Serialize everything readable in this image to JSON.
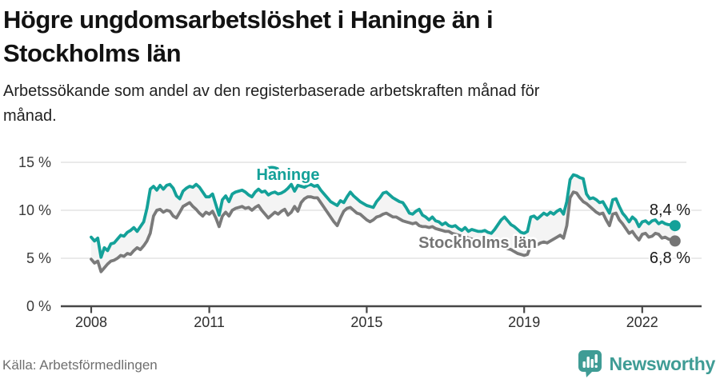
{
  "header": {
    "title": "Högre ungdomsarbetslöshet i Haninge än i Stockholms län",
    "title_lines": [
      "Högre ungdomsarbetslöshet i Haninge än i",
      "Stockholms län"
    ],
    "subtitle": "Arbetssökande som andel av den registerbaserade arbetskraften månad för månad.",
    "subtitle_lines": [
      "Arbetssökande som andel av den registerbaserade arbetskraften månad för",
      "månad."
    ]
  },
  "footer": {
    "source": "Källa: Arbetsförmedlingen",
    "brand": "Newsworthy"
  },
  "colors": {
    "haninge": "#14a199",
    "stockholm": "#7a7a7a",
    "fill_between": "#f4f4f4",
    "gridline": "#e3e3e3",
    "axis": "#474747",
    "brand_teal": "#3f9c95"
  },
  "chart_data": {
    "type": "line",
    "title": "Högre ungdomsarbetslöshet i Haninge än i Stockholms län",
    "subtitle": "Arbetssökande som andel av den registerbaserade arbetskraften månad för månad.",
    "unit": "%",
    "frequency": "monthly",
    "x_start": "2008-01",
    "x_end": "2022-11",
    "grid": "horizontal",
    "legend": "inline-labels",
    "ylim": [
      0,
      16.5
    ],
    "y_ticks": [
      {
        "value": 0,
        "label": "0 %"
      },
      {
        "value": 5,
        "label": "5 %"
      },
      {
        "value": 10,
        "label": "10 %"
      },
      {
        "value": 15,
        "label": "15 %"
      }
    ],
    "x_ticks": [
      {
        "year": 2008,
        "label": "2008"
      },
      {
        "year": 2011,
        "label": "2011"
      },
      {
        "year": 2015,
        "label": "2015"
      },
      {
        "year": 2019,
        "label": "2019"
      },
      {
        "year": 2022,
        "label": "2022"
      }
    ],
    "series": [
      {
        "name": "Haninge",
        "color": "#14a199",
        "end_label": "8,4 %",
        "end_value": 8.4,
        "values": [
          7.2,
          6.8,
          7.1,
          5.1,
          6.1,
          5.8,
          6.5,
          6.6,
          7.0,
          7.4,
          7.3,
          7.7,
          7.9,
          8.2,
          7.8,
          8.3,
          8.8,
          10.2,
          12.2,
          12.5,
          12.1,
          12.6,
          12.2,
          12.6,
          12.7,
          12.3,
          11.5,
          11.2,
          12.0,
          12.3,
          12.5,
          12.4,
          12.7,
          12.4,
          11.9,
          11.4,
          11.4,
          11.7,
          10.6,
          9.5,
          11.1,
          11.5,
          10.9,
          11.7,
          11.9,
          12.0,
          12.1,
          11.9,
          11.6,
          11.4,
          11.9,
          12.2,
          11.9,
          12.0,
          11.6,
          11.8,
          11.9,
          11.7,
          11.8,
          12.0,
          12.3,
          12.7,
          12.0,
          12.6,
          12.5,
          12.4,
          12.6,
          12.7,
          12.5,
          12.6,
          12.1,
          11.7,
          11.3,
          10.9,
          10.7,
          10.5,
          11.0,
          10.8,
          11.4,
          11.9,
          11.5,
          11.2,
          10.9,
          10.7,
          10.5,
          10.4,
          10.3,
          10.9,
          11.3,
          11.8,
          11.9,
          11.6,
          11.3,
          11.1,
          10.9,
          10.8,
          10.3,
          9.7,
          9.6,
          9.9,
          10.1,
          9.5,
          9.3,
          9.0,
          9.3,
          8.9,
          8.8,
          8.5,
          8.7,
          8.4,
          8.3,
          8.4,
          8.1,
          7.9,
          8.2,
          7.8,
          8.0,
          7.9,
          7.8,
          7.8,
          7.9,
          7.7,
          7.6,
          8.0,
          8.5,
          9.0,
          9.3,
          8.9,
          8.5,
          8.3,
          8.0,
          7.7,
          7.6,
          7.8,
          9.3,
          9.4,
          9.1,
          9.4,
          9.7,
          9.5,
          9.8,
          9.6,
          9.9,
          10.1,
          9.6,
          10.9,
          13.2,
          13.7,
          13.6,
          13.4,
          13.3,
          11.7,
          11.2,
          11.3,
          11.1,
          10.8,
          10.9,
          10.3,
          9.7,
          11.1,
          11.2,
          10.4,
          9.7,
          9.3,
          8.8,
          9.3,
          9.0,
          8.3,
          8.8,
          8.9,
          8.6,
          8.9,
          9.0,
          8.6,
          8.8,
          8.6,
          8.5,
          8.5,
          8.4
        ]
      },
      {
        "name": "Stockholms län",
        "color": "#7a7a7a",
        "end_label": "6,8 %",
        "end_value": 6.8,
        "values": [
          4.9,
          4.5,
          4.7,
          3.6,
          4.0,
          4.4,
          4.7,
          4.8,
          5.0,
          5.3,
          5.2,
          5.5,
          5.4,
          5.8,
          6.1,
          5.9,
          6.3,
          6.8,
          7.6,
          9.4,
          10.0,
          10.1,
          9.8,
          10.0,
          9.9,
          9.4,
          9.2,
          9.8,
          10.4,
          10.6,
          10.8,
          10.4,
          10.1,
          9.7,
          9.4,
          9.8,
          9.6,
          9.9,
          9.2,
          8.3,
          9.4,
          9.8,
          9.4,
          10.0,
          10.2,
          10.3,
          10.4,
          10.2,
          10.3,
          10.0,
          10.3,
          10.5,
          10.0,
          9.6,
          9.2,
          9.5,
          9.8,
          9.6,
          9.9,
          10.1,
          9.5,
          9.8,
          10.4,
          9.9,
          10.8,
          11.2,
          11.4,
          11.4,
          11.3,
          11.3,
          10.8,
          10.3,
          9.8,
          9.3,
          8.8,
          8.4,
          9.2,
          9.9,
          10.2,
          10.3,
          10.0,
          9.7,
          9.6,
          9.3,
          9.0,
          8.8,
          9.0,
          9.3,
          9.4,
          9.6,
          9.7,
          9.5,
          9.3,
          9.3,
          9.1,
          8.9,
          8.8,
          8.7,
          8.6,
          8.7,
          8.4,
          8.3,
          8.3,
          8.2,
          8.3,
          8.1,
          8.0,
          7.9,
          7.8,
          7.8,
          7.6,
          7.5,
          7.4,
          7.3,
          7.3,
          7.1,
          7.0,
          6.9,
          6.9,
          6.8,
          6.7,
          6.6,
          6.5,
          6.4,
          6.3,
          6.2,
          6.1,
          6.0,
          5.9,
          5.7,
          5.5,
          5.4,
          5.3,
          5.4,
          6.3,
          6.5,
          6.4,
          6.6,
          6.7,
          6.6,
          6.8,
          7.0,
          7.2,
          7.4,
          7.1,
          8.4,
          11.3,
          11.9,
          11.8,
          11.3,
          10.9,
          10.7,
          10.4,
          10.1,
          9.8,
          9.6,
          9.7,
          9.0,
          8.4,
          9.6,
          9.7,
          9.0,
          8.6,
          8.1,
          7.6,
          7.8,
          7.3,
          6.9,
          7.5,
          7.6,
          7.2,
          7.3,
          7.6,
          7.5,
          7.1,
          7.2,
          7.0,
          6.9,
          6.8
        ]
      }
    ]
  }
}
